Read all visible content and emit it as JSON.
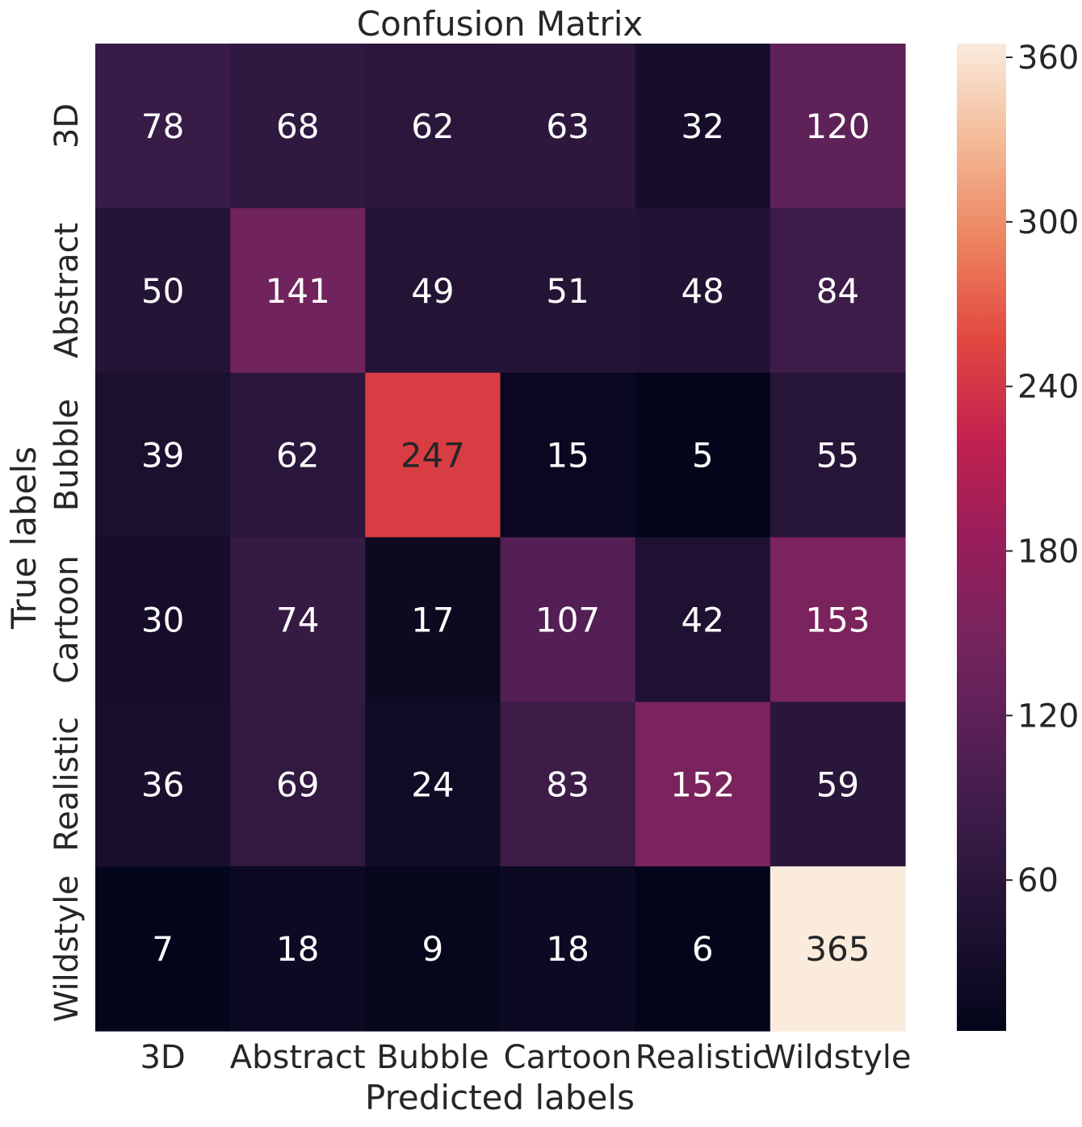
{
  "chart_data": {
    "type": "heatmap",
    "title": "Confusion Matrix",
    "xlabel": "Predicted labels",
    "ylabel": "True labels",
    "x_categories": [
      "3D",
      "Abstract",
      "Bubble",
      "Cartoon",
      "Realistic",
      "Wildstyle"
    ],
    "y_categories": [
      "3D",
      "Abstract",
      "Bubble",
      "Cartoon",
      "Realistic",
      "Wildstyle"
    ],
    "values": [
      [
        78,
        68,
        62,
        63,
        32,
        120
      ],
      [
        50,
        141,
        49,
        51,
        48,
        84
      ],
      [
        39,
        62,
        247,
        15,
        5,
        55
      ],
      [
        30,
        74,
        17,
        107,
        42,
        153
      ],
      [
        36,
        69,
        24,
        83,
        152,
        59
      ],
      [
        7,
        18,
        9,
        18,
        6,
        365
      ]
    ],
    "colorbar": {
      "colormap": "rocket",
      "min": 5,
      "max": 365,
      "ticks": [
        60,
        120,
        180,
        240,
        300,
        360
      ]
    }
  }
}
